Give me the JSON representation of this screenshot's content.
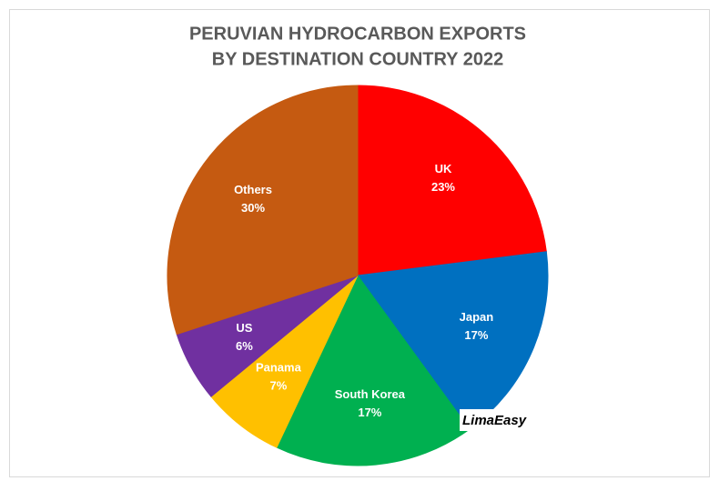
{
  "chart_data": {
    "type": "pie",
    "title": [
      "PERUVIAN HYDROCARBON EXPORTS",
      "BY DESTINATION COUNTRY 2022"
    ],
    "categories": [
      "UK",
      "Japan",
      "South Korea",
      "Panama",
      "US",
      "Others"
    ],
    "values": [
      23,
      17,
      17,
      7,
      6,
      30
    ],
    "value_labels": [
      "23%",
      "17%",
      "17%",
      "7%",
      "6%",
      "30%"
    ],
    "colors": [
      "#ff0000",
      "#0070c0",
      "#00b050",
      "#ffc000",
      "#7030a0",
      "#c55a11"
    ],
    "watermark": "LimaEasy"
  }
}
